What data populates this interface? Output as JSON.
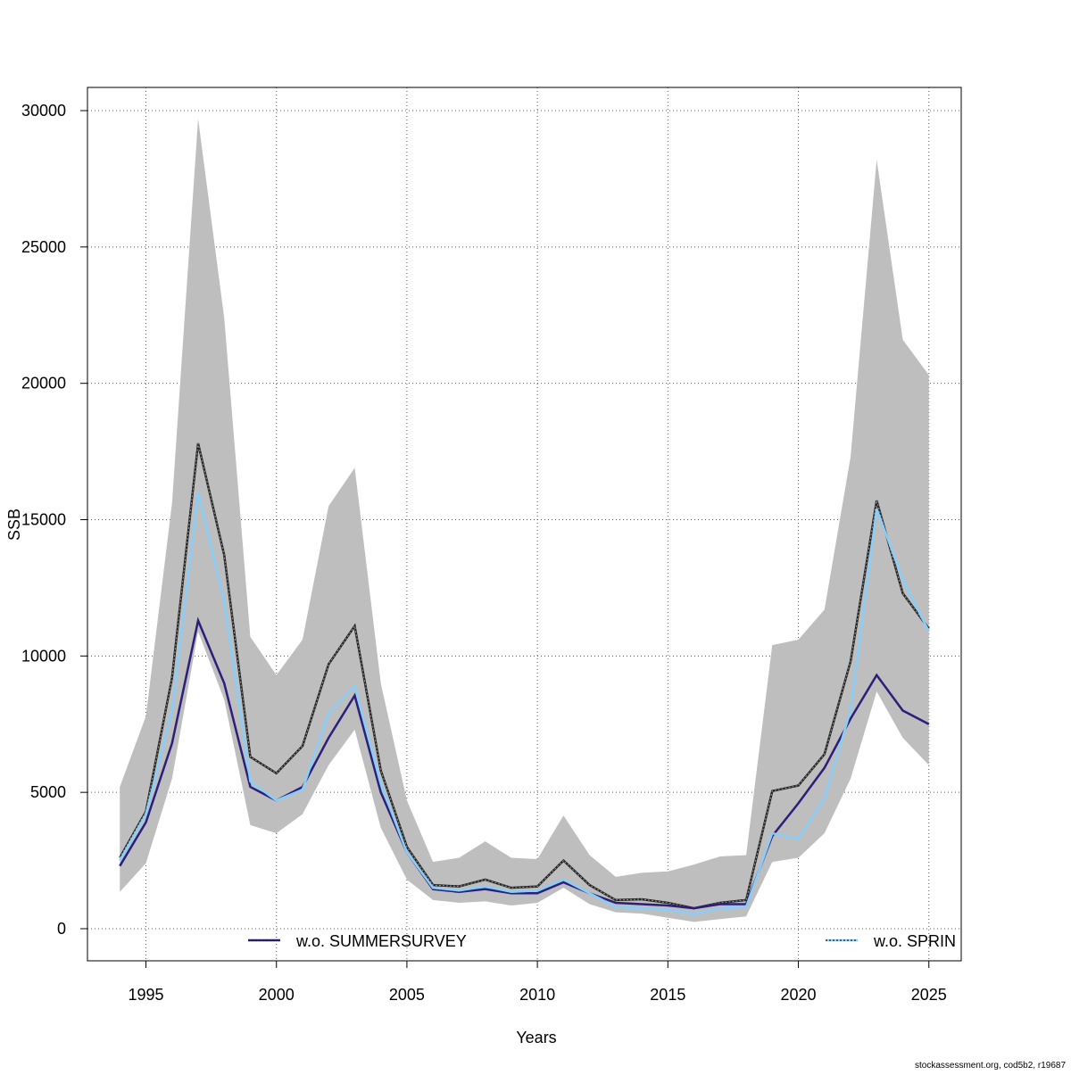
{
  "chart_data": {
    "type": "line",
    "x_label": "Years",
    "y_label": "SSB",
    "footer": "stockassessment.org, cod5b2, r19687",
    "x": [
      1994,
      1995,
      1996,
      1997,
      1998,
      1999,
      2000,
      2001,
      2002,
      2003,
      2004,
      2005,
      2006,
      2007,
      2008,
      2009,
      2010,
      2011,
      2012,
      2013,
      2014,
      2015,
      2016,
      2017,
      2018,
      2019,
      2020,
      2021,
      2022,
      2023,
      2024,
      2025
    ],
    "band": {
      "color": "#bebebe",
      "upper": [
        5200,
        7800,
        15600,
        29700,
        22400,
        10700,
        9300,
        10600,
        15500,
        16900,
        9000,
        4700,
        2450,
        2600,
        3200,
        2600,
        2550,
        4150,
        2700,
        1900,
        2050,
        2100,
        2350,
        2650,
        2700,
        10400,
        10600,
        11700,
        17300,
        28200,
        21600,
        20300
      ],
      "lower": [
        1350,
        2400,
        5500,
        10900,
        8400,
        3800,
        3500,
        4200,
        6000,
        7300,
        3700,
        1800,
        1050,
        950,
        1000,
        850,
        950,
        1500,
        900,
        600,
        550,
        400,
        250,
        350,
        450,
        2450,
        2600,
        3500,
        5500,
        8700,
        7000,
        6000
      ]
    },
    "series": [
      {
        "color": "#222222",
        "values": [
          2600,
          4300,
          9200,
          17800,
          13700,
          6300,
          5700,
          6700,
          9700,
          11100,
          5800,
          3000,
          1600,
          1550,
          1800,
          1500,
          1550,
          2500,
          1600,
          1050,
          1080,
          950,
          750,
          950,
          1050,
          5050,
          5250,
          6400,
          9800,
          15700,
          12300,
          11000
        ]
      },
      {
        "name": "w.o. SUMMERSURVEY",
        "color": "#2b1f7a",
        "values": [
          2300,
          3900,
          6800,
          11300,
          9000,
          5200,
          4700,
          5200,
          7000,
          8550,
          5000,
          2800,
          1450,
          1350,
          1450,
          1300,
          1300,
          1700,
          1300,
          950,
          900,
          850,
          750,
          900,
          900,
          3400,
          4600,
          5900,
          7700,
          9300,
          8000,
          7500
        ]
      },
      {
        "name": "w.o. SPRIN",
        "color": "#87cefa",
        "values": [
          2500,
          4200,
          8000,
          16000,
          12000,
          5400,
          4700,
          5100,
          7900,
          8900,
          5300,
          2800,
          1500,
          1400,
          1550,
          1350,
          1400,
          1800,
          1300,
          800,
          750,
          700,
          550,
          750,
          800,
          3500,
          3300,
          4800,
          8000,
          15400,
          12800,
          10900
        ]
      }
    ],
    "xlim": [
      1992.76,
      2026.24
    ],
    "ylim": [
      -1178,
      30851
    ],
    "xticks": [
      1995,
      2000,
      2005,
      2010,
      2015,
      2020,
      2025
    ],
    "yticks": [
      0,
      5000,
      10000,
      15000,
      20000,
      25000,
      30000
    ],
    "grid": true
  }
}
